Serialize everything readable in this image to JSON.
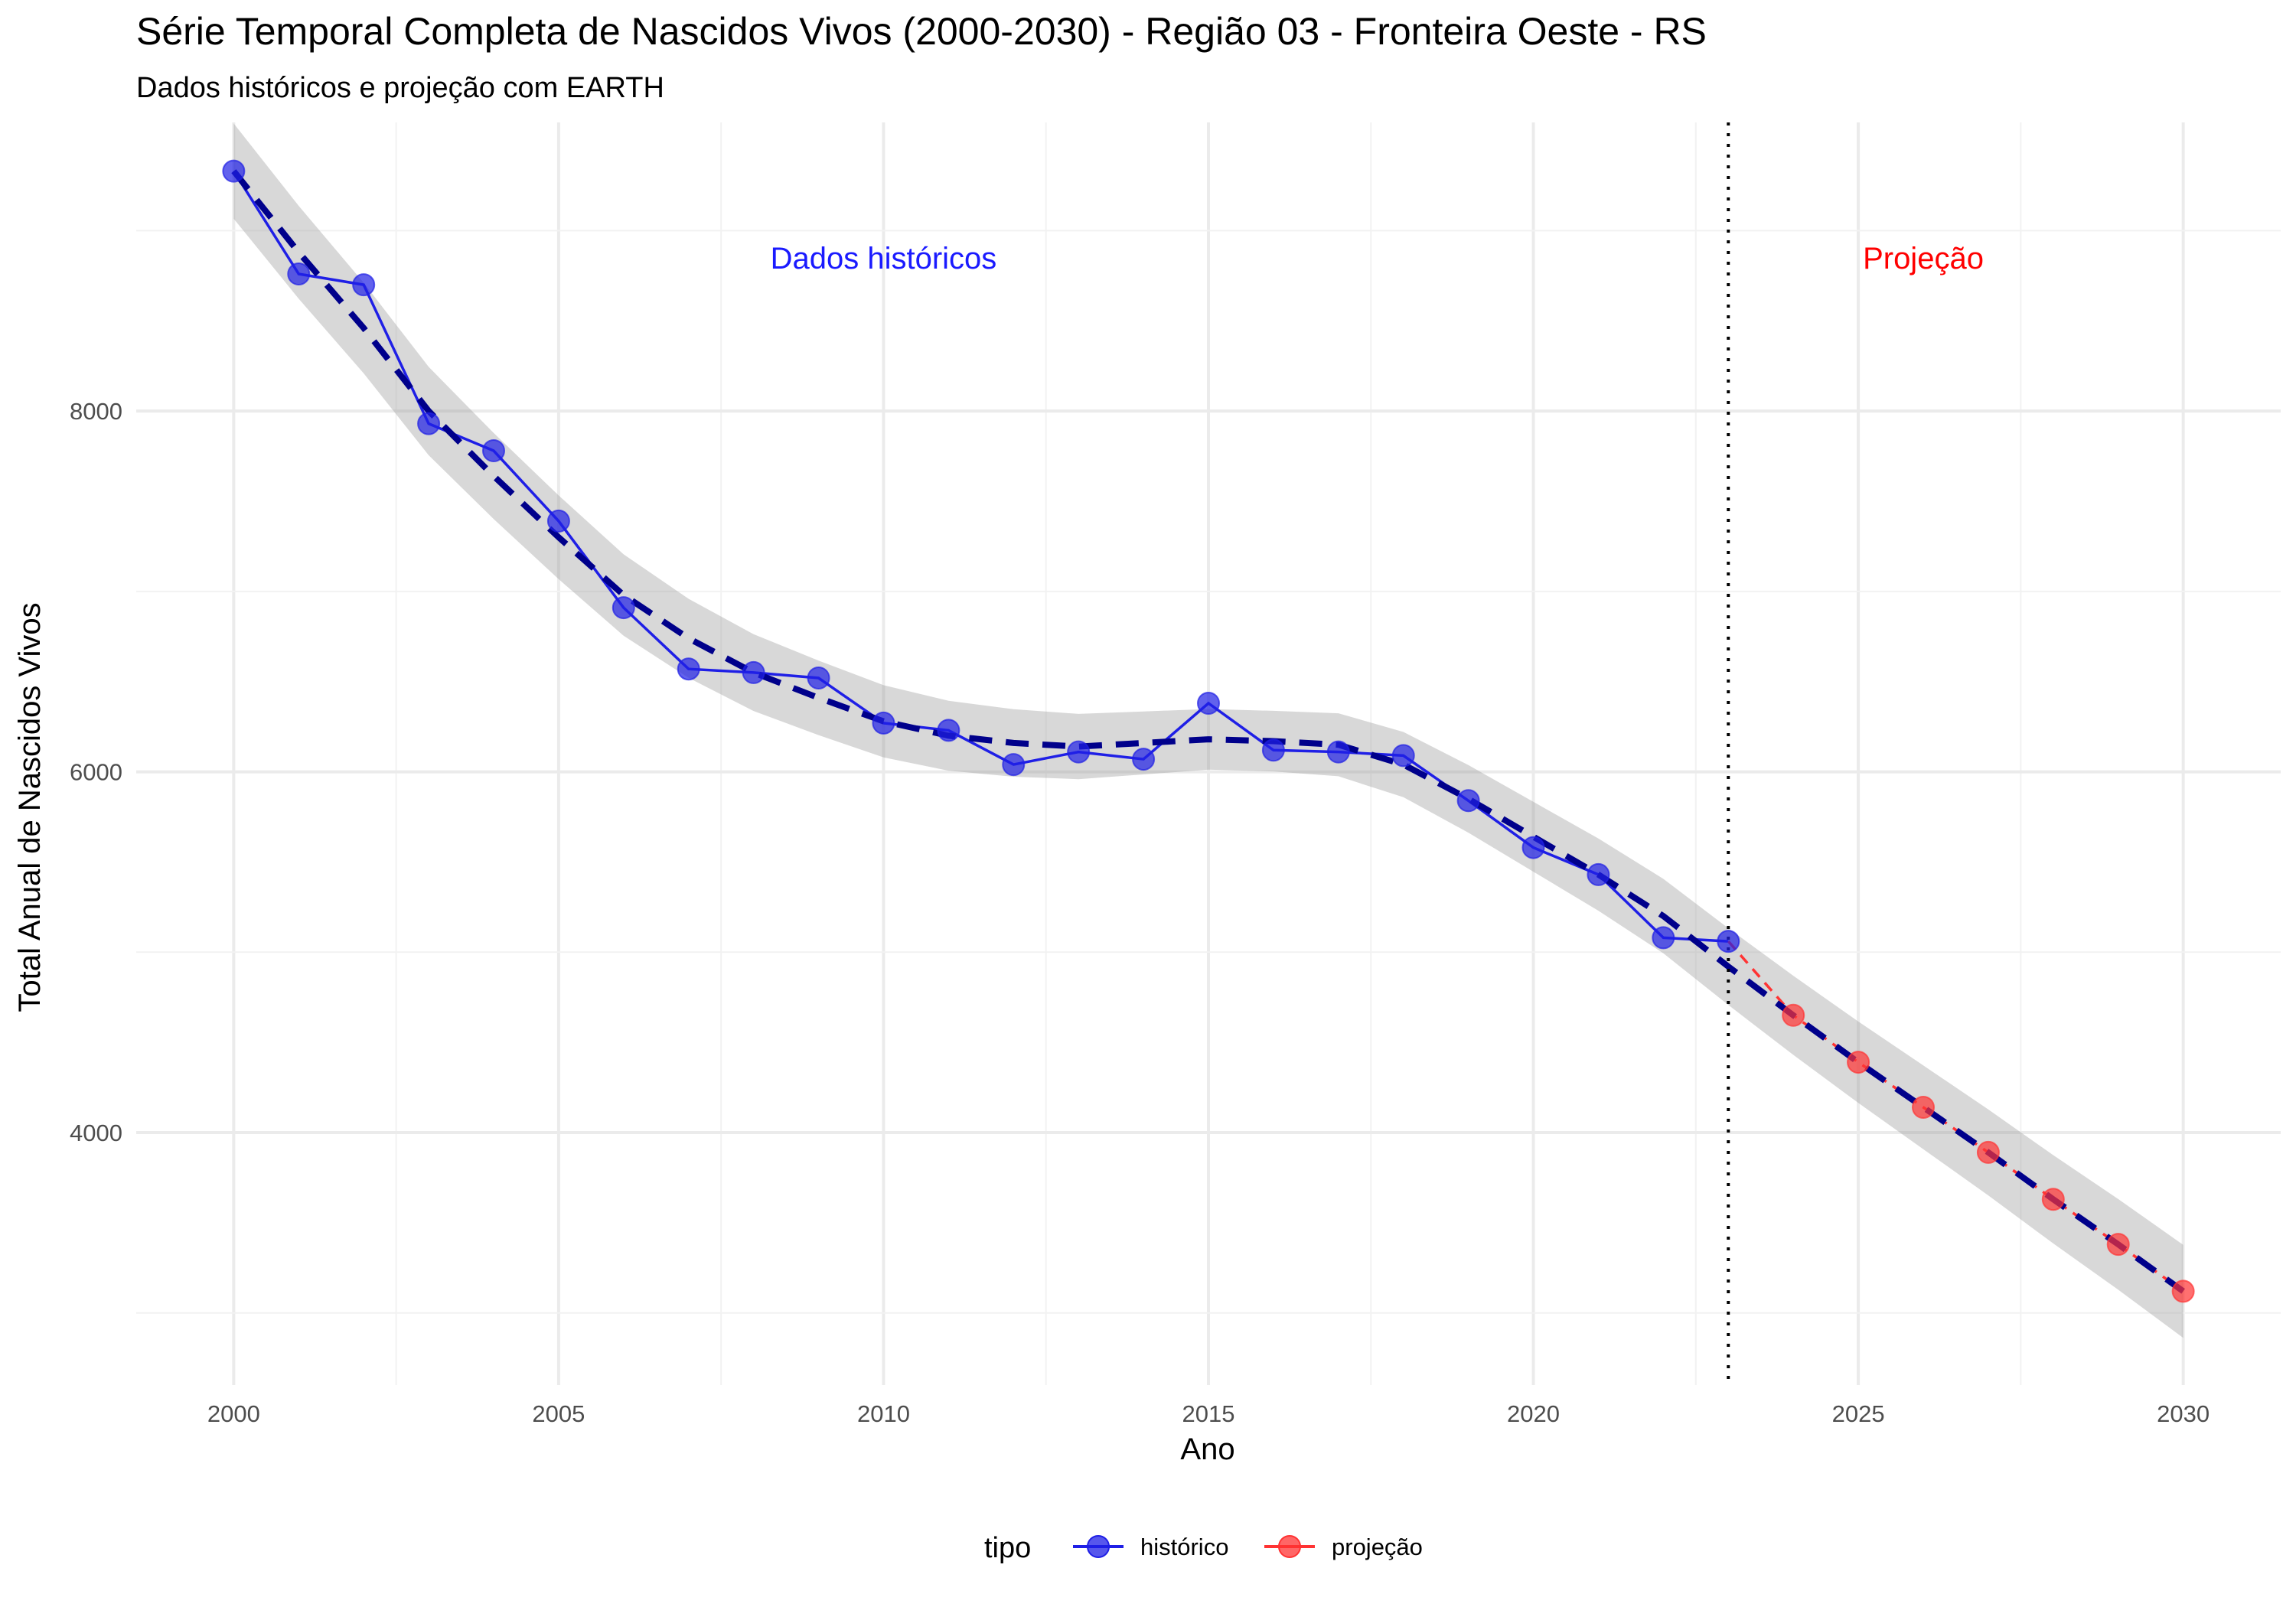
{
  "chart_data": {
    "type": "line",
    "title": "Série Temporal Completa de Nascidos Vivos (2000-2030) -  Região 03 - Fronteira Oeste - RS",
    "subtitle": "Dados históricos e projeção com EARTH",
    "xlabel": "Ano",
    "ylabel": "Total Anual de Nascidos Vivos",
    "xlim": [
      1998.5,
      2031.5
    ],
    "ylim": [
      2600,
      9600
    ],
    "x_ticks": [
      2000,
      2005,
      2010,
      2015,
      2020,
      2025,
      2030
    ],
    "y_ticks": [
      4000,
      6000,
      8000
    ],
    "grid": true,
    "legend": {
      "title": "tipo",
      "position": "bottom",
      "entries": [
        {
          "label": "histórico",
          "color": "#1f1fe6"
        },
        {
          "label": "projeção",
          "color": "#ff3333"
        }
      ]
    },
    "annotations": [
      {
        "text": "Dados históricos",
        "x": 2010,
        "y": 8850,
        "color": "#1a1aff"
      },
      {
        "text": "Projeção",
        "x": 2026,
        "y": 8850,
        "color": "#ff0000"
      }
    ],
    "vline": {
      "x": 2023,
      "style": "dotted"
    },
    "series": [
      {
        "name": "histórico",
        "color": "#1f1fe6",
        "x": [
          2000,
          2001,
          2002,
          2003,
          2004,
          2005,
          2006,
          2007,
          2008,
          2009,
          2010,
          2011,
          2012,
          2013,
          2014,
          2015,
          2016,
          2017,
          2018,
          2019,
          2020,
          2021,
          2022,
          2023
        ],
        "y": [
          9330,
          8760,
          8700,
          7930,
          7780,
          7390,
          6910,
          6570,
          6550,
          6520,
          6270,
          6230,
          6040,
          6110,
          6070,
          6380,
          6120,
          6110,
          6090,
          5840,
          5580,
          5430,
          5080,
          5060
        ]
      },
      {
        "name": "projeção",
        "color": "#ff3333",
        "x": [
          2023,
          2024,
          2025,
          2026,
          2027,
          2028,
          2029,
          2030
        ],
        "y": [
          5060,
          4650,
          4390,
          4140,
          3890,
          3630,
          3380,
          3120
        ]
      }
    ],
    "trend": {
      "color": "#00008b",
      "style": "dashed",
      "x": [
        2000,
        2001,
        2002,
        2003,
        2004,
        2005,
        2006,
        2007,
        2008,
        2009,
        2010,
        2011,
        2012,
        2013,
        2014,
        2015,
        2016,
        2017,
        2018,
        2019,
        2020,
        2021,
        2022,
        2023,
        2024,
        2025,
        2026,
        2027,
        2028,
        2029,
        2030
      ],
      "y": [
        9330,
        8880,
        8460,
        8000,
        7640,
        7300,
        6980,
        6740,
        6550,
        6410,
        6280,
        6200,
        6160,
        6140,
        6160,
        6180,
        6170,
        6150,
        6040,
        5850,
        5640,
        5430,
        5200,
        4920,
        4650,
        4390,
        4140,
        3890,
        3630,
        3380,
        3120
      ],
      "band": 165
    }
  }
}
